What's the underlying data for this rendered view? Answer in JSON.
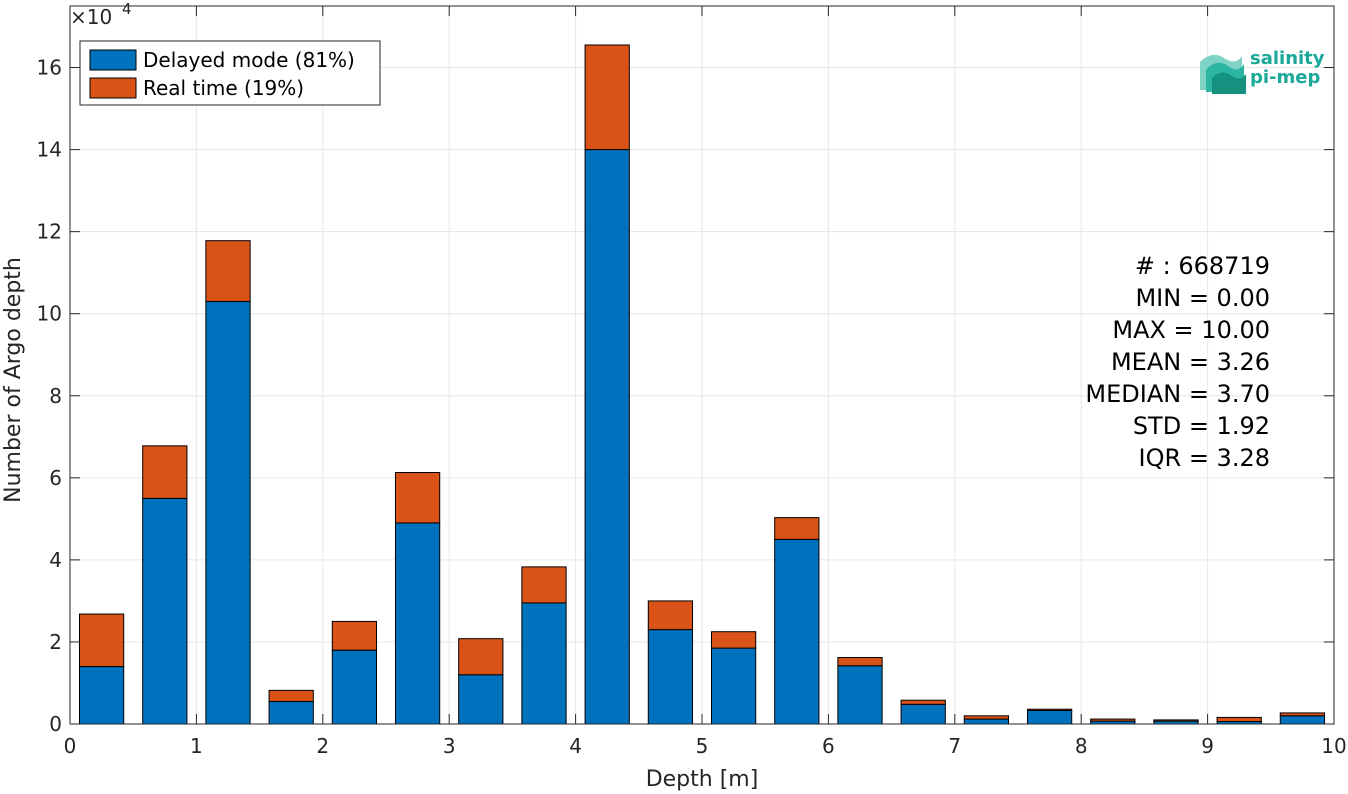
{
  "chart_data": {
    "type": "bar",
    "stacked": true,
    "xlabel": "Depth [m]",
    "ylabel": "Number of Argo depth",
    "y_exponent_label": "×10",
    "y_exponent": "4",
    "xlim": [
      0,
      10
    ],
    "ylim": [
      0,
      17.5
    ],
    "xticks": [
      "0",
      "1",
      "2",
      "3",
      "4",
      "5",
      "6",
      "7",
      "8",
      "9",
      "10"
    ],
    "yticks": [
      "0",
      "2",
      "4",
      "6",
      "8",
      "10",
      "12",
      "14",
      "16"
    ],
    "grid": true,
    "legend_position": "top-left",
    "bin_centers": [
      0.25,
      0.75,
      1.25,
      1.75,
      2.25,
      2.75,
      3.25,
      3.75,
      4.25,
      4.75,
      5.25,
      5.75,
      6.25,
      6.75,
      7.25,
      7.75,
      8.25,
      8.75,
      9.25,
      9.75
    ],
    "bar_width": 0.35,
    "series": [
      {
        "name": "Delayed mode (81%)",
        "color": "#0072BD",
        "values": [
          1.4,
          5.5,
          10.3,
          0.55,
          1.8,
          4.9,
          1.2,
          2.95,
          14.0,
          2.3,
          1.85,
          4.5,
          1.42,
          0.48,
          0.12,
          0.33,
          0.07,
          0.07,
          0.06,
          0.2
        ]
      },
      {
        "name": "Real time (19%)",
        "color": "#D95319",
        "values": [
          1.28,
          1.28,
          1.48,
          0.27,
          0.7,
          1.23,
          0.88,
          0.88,
          2.55,
          0.7,
          0.4,
          0.53,
          0.2,
          0.1,
          0.08,
          0.03,
          0.05,
          0.03,
          0.1,
          0.07
        ]
      }
    ]
  },
  "stats": [
    "# : 668719",
    "MIN = 0.00",
    "MAX =  10.00",
    "MEAN = 3.26",
    "MEDIAN = 3.70",
    "STD = 1.92",
    "IQR = 3.28"
  ],
  "logo": {
    "line1": "salinity",
    "line2": "pi-mep",
    "color": "#1aa898"
  }
}
